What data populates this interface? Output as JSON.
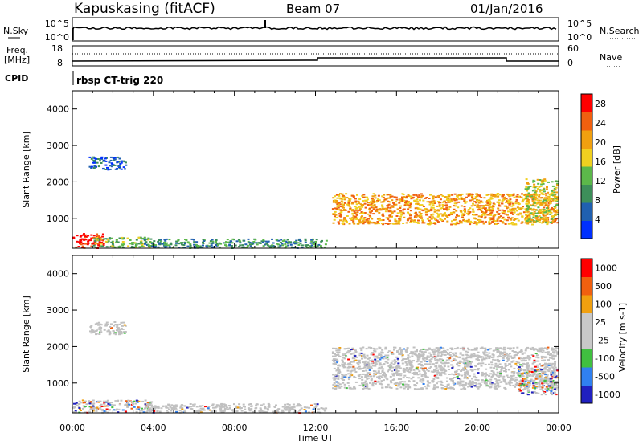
{
  "header": {
    "station": "Kapuskasing (fitACF)",
    "beam": "Beam 07",
    "date": "01/Jan/2016"
  },
  "noise_panel": {
    "left_label": "N.Sky",
    "left_ticks": [
      "10^5",
      "10^0"
    ],
    "right_label": "N.Search",
    "right_ticks": [
      "10^5",
      "10^0"
    ]
  },
  "freq_panel": {
    "left_label_1": "Freq.",
    "left_label_2": "[MHz]",
    "left_ticks": [
      "18",
      "8"
    ],
    "right_label": "Nave",
    "right_ticks": [
      "60",
      "0"
    ]
  },
  "cpid": {
    "label": "CPID",
    "program": "rbsp CT-trig 220"
  },
  "colors": {
    "power_scale": [
      "#0030ff",
      "#2060b0",
      "#3d8f5a",
      "#5cb84a",
      "#f0d020",
      "#f0a010",
      "#f06010",
      "#ff0000"
    ],
    "velocity_scale": [
      "#2020c0",
      "#3080f0",
      "#40c040",
      "#c8c8c8",
      "#c8c8c8",
      "#f0a010",
      "#f06010",
      "#ff0000"
    ],
    "ground_scatter": "#c0c0c0"
  },
  "chart_data": [
    {
      "type": "heatmap",
      "panel": "power",
      "ylabel": "Slant Range [km]",
      "xlabel": "",
      "x_ticks": [
        "00:00",
        "04:00",
        "08:00",
        "12:00",
        "16:00",
        "20:00",
        "00:00"
      ],
      "x_range_hours": [
        0,
        24
      ],
      "y_ticks": [
        1000,
        2000,
        3000,
        4000
      ],
      "ylim": [
        180,
        4500
      ],
      "colorbar": {
        "label": "Power [dB]",
        "ticks": [
          4,
          8,
          12,
          16,
          20,
          24,
          28
        ],
        "range": [
          0,
          30
        ]
      },
      "echo_regions": [
        {
          "t": [
            0.0,
            1.5
          ],
          "r": [
            200,
            600
          ],
          "level": 28
        },
        {
          "t": [
            1.0,
            4.0
          ],
          "r": [
            200,
            500
          ],
          "level": 14
        },
        {
          "t": [
            3.5,
            12.5
          ],
          "r": [
            200,
            450
          ],
          "level": 10
        },
        {
          "t": [
            0.8,
            2.6
          ],
          "r": [
            2350,
            2700
          ],
          "level": 6
        },
        {
          "t": [
            12.8,
            23.9
          ],
          "r": [
            850,
            1700
          ],
          "level": 22
        },
        {
          "t": [
            22.3,
            23.9
          ],
          "r": [
            900,
            2100
          ],
          "level": 18
        }
      ]
    },
    {
      "type": "heatmap",
      "panel": "velocity",
      "ylabel": "Slant Range [km]",
      "xlabel": "Time UT",
      "x_ticks": [
        "00:00",
        "04:00",
        "08:00",
        "12:00",
        "16:00",
        "20:00",
        "00:00"
      ],
      "x_range_hours": [
        0,
        24
      ],
      "y_ticks": [
        1000,
        2000,
        3000,
        4000
      ],
      "ylim": [
        180,
        4500
      ],
      "colorbar": {
        "label": "Velocity [m s-1]",
        "ticks": [
          "1000",
          "500",
          "100",
          "25",
          "-25",
          "-100",
          "-500",
          "-1000"
        ]
      },
      "echo_regions": [
        {
          "t": [
            0.0,
            4.0
          ],
          "r": [
            200,
            550
          ],
          "kind": "mixed"
        },
        {
          "t": [
            3.5,
            12.5
          ],
          "r": [
            200,
            450
          ],
          "kind": "ground"
        },
        {
          "t": [
            0.8,
            2.6
          ],
          "r": [
            2350,
            2700
          ],
          "kind": "ground"
        },
        {
          "t": [
            12.8,
            23.9
          ],
          "r": [
            850,
            2000
          ],
          "kind": "ground"
        },
        {
          "t": [
            22.0,
            23.9
          ],
          "r": [
            700,
            1400
          ],
          "kind": "mixed"
        }
      ]
    }
  ]
}
